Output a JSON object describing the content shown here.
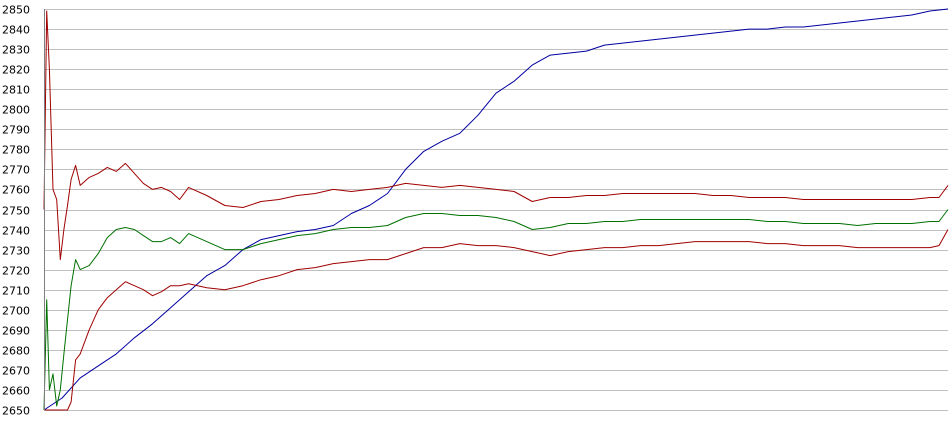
{
  "chart_data": {
    "type": "line",
    "title": "",
    "xlabel": "",
    "ylabel": "",
    "ylim": [
      2650,
      2850
    ],
    "y_ticks": [
      2650,
      2660,
      2670,
      2680,
      2690,
      2700,
      2710,
      2720,
      2730,
      2740,
      2750,
      2760,
      2770,
      2780,
      2790,
      2800,
      2810,
      2820,
      2830,
      2840,
      2850
    ],
    "x_range": [
      0,
      100
    ],
    "grid": "horizontal",
    "legend": "none",
    "series": [
      {
        "color": "#0000a0",
        "x": [
          0,
          2,
          4,
          6,
          8,
          10,
          12,
          14,
          16,
          18,
          20,
          22,
          24,
          26,
          28,
          30,
          32,
          34,
          36,
          38,
          40,
          42,
          44,
          46,
          48,
          50,
          52,
          54,
          56,
          58,
          60,
          62,
          64,
          66,
          68,
          70,
          72,
          74,
          76,
          78,
          80,
          82,
          84,
          86,
          88,
          90,
          92,
          94,
          96,
          98,
          100
        ],
        "values": [
          2650,
          2656,
          2666,
          2672,
          2678,
          2686,
          2693,
          2701,
          2709,
          2717,
          2722,
          2730,
          2735,
          2737,
          2739,
          2740,
          2742,
          2748,
          2752,
          2758,
          2770,
          2779,
          2784,
          2788,
          2797,
          2808,
          2814,
          2822,
          2827,
          2828,
          2829,
          2832,
          2833,
          2834,
          2835,
          2836,
          2837,
          2838,
          2839,
          2840,
          2840,
          2841,
          2841,
          2842,
          2843,
          2844,
          2845,
          2846,
          2847,
          2849,
          2850
        ]
      },
      {
        "color": "#a00000",
        "x": [
          0,
          0.3,
          0.6,
          1,
          1.4,
          1.8,
          2.2,
          2.6,
          3,
          3.5,
          4,
          5,
          6,
          7,
          8,
          9,
          10,
          11,
          12,
          13,
          14,
          15,
          16,
          18,
          20,
          22,
          24,
          26,
          28,
          30,
          32,
          34,
          36,
          38,
          40,
          42,
          44,
          46,
          48,
          50,
          52,
          54,
          56,
          58,
          60,
          62,
          64,
          66,
          68,
          70,
          72,
          74,
          76,
          78,
          80,
          82,
          84,
          86,
          88,
          90,
          92,
          94,
          96,
          98,
          99,
          100
        ],
        "values": [
          2750,
          2849,
          2820,
          2760,
          2755,
          2725,
          2740,
          2752,
          2765,
          2772,
          2762,
          2766,
          2768,
          2771,
          2769,
          2773,
          2768,
          2763,
          2760,
          2761,
          2759,
          2755,
          2761,
          2757,
          2752,
          2751,
          2754,
          2755,
          2757,
          2758,
          2760,
          2759,
          2760,
          2761,
          2763,
          2762,
          2761,
          2762,
          2761,
          2760,
          2759,
          2754,
          2756,
          2756,
          2757,
          2757,
          2758,
          2758,
          2758,
          2758,
          2758,
          2757,
          2757,
          2756,
          2756,
          2756,
          2755,
          2755,
          2755,
          2755,
          2755,
          2755,
          2755,
          2756,
          2756,
          2762
        ]
      },
      {
        "color": "#007000",
        "x": [
          0,
          0.3,
          0.6,
          1,
          1.4,
          1.8,
          2.2,
          2.6,
          3,
          3.5,
          4,
          5,
          6,
          7,
          8,
          9,
          10,
          11,
          12,
          13,
          14,
          15,
          16,
          18,
          20,
          22,
          24,
          26,
          28,
          30,
          32,
          34,
          36,
          38,
          40,
          42,
          44,
          46,
          48,
          50,
          52,
          54,
          56,
          58,
          60,
          62,
          64,
          66,
          68,
          70,
          72,
          74,
          76,
          78,
          80,
          82,
          84,
          86,
          88,
          90,
          92,
          94,
          96,
          98,
          99,
          100
        ],
        "values": [
          2650,
          2705,
          2660,
          2668,
          2652,
          2660,
          2678,
          2695,
          2712,
          2725,
          2720,
          2722,
          2728,
          2736,
          2740,
          2741,
          2740,
          2737,
          2734,
          2734,
          2736,
          2733,
          2738,
          2734,
          2730,
          2730,
          2733,
          2735,
          2737,
          2738,
          2740,
          2741,
          2741,
          2742,
          2746,
          2748,
          2748,
          2747,
          2747,
          2746,
          2744,
          2740,
          2741,
          2743,
          2743,
          2744,
          2744,
          2745,
          2745,
          2745,
          2745,
          2745,
          2745,
          2745,
          2744,
          2744,
          2743,
          2743,
          2743,
          2742,
          2743,
          2743,
          2743,
          2744,
          2744,
          2750
        ]
      },
      {
        "color": "#a00000",
        "x": [
          0,
          0.3,
          0.6,
          1,
          1.4,
          1.8,
          2.2,
          2.6,
          3,
          3.5,
          4,
          5,
          6,
          7,
          8,
          9,
          10,
          11,
          12,
          13,
          14,
          15,
          16,
          18,
          20,
          22,
          24,
          26,
          28,
          30,
          32,
          34,
          36,
          38,
          40,
          42,
          44,
          46,
          48,
          50,
          52,
          54,
          56,
          58,
          60,
          62,
          64,
          66,
          68,
          70,
          72,
          74,
          76,
          78,
          80,
          82,
          84,
          86,
          88,
          90,
          92,
          94,
          96,
          98,
          99,
          100
        ],
        "values": [
          2650,
          2650,
          2650,
          2650,
          2650,
          2650,
          2650,
          2650,
          2654,
          2675,
          2678,
          2690,
          2700,
          2706,
          2710,
          2714,
          2712,
          2710,
          2707,
          2709,
          2712,
          2712,
          2713,
          2711,
          2710,
          2712,
          2715,
          2717,
          2720,
          2721,
          2723,
          2724,
          2725,
          2725,
          2728,
          2731,
          2731,
          2733,
          2732,
          2732,
          2731,
          2729,
          2727,
          2729,
          2730,
          2731,
          2731,
          2732,
          2732,
          2733,
          2734,
          2734,
          2734,
          2734,
          2733,
          2733,
          2732,
          2732,
          2732,
          2731,
          2731,
          2731,
          2731,
          2731,
          2732,
          2740
        ]
      }
    ]
  }
}
